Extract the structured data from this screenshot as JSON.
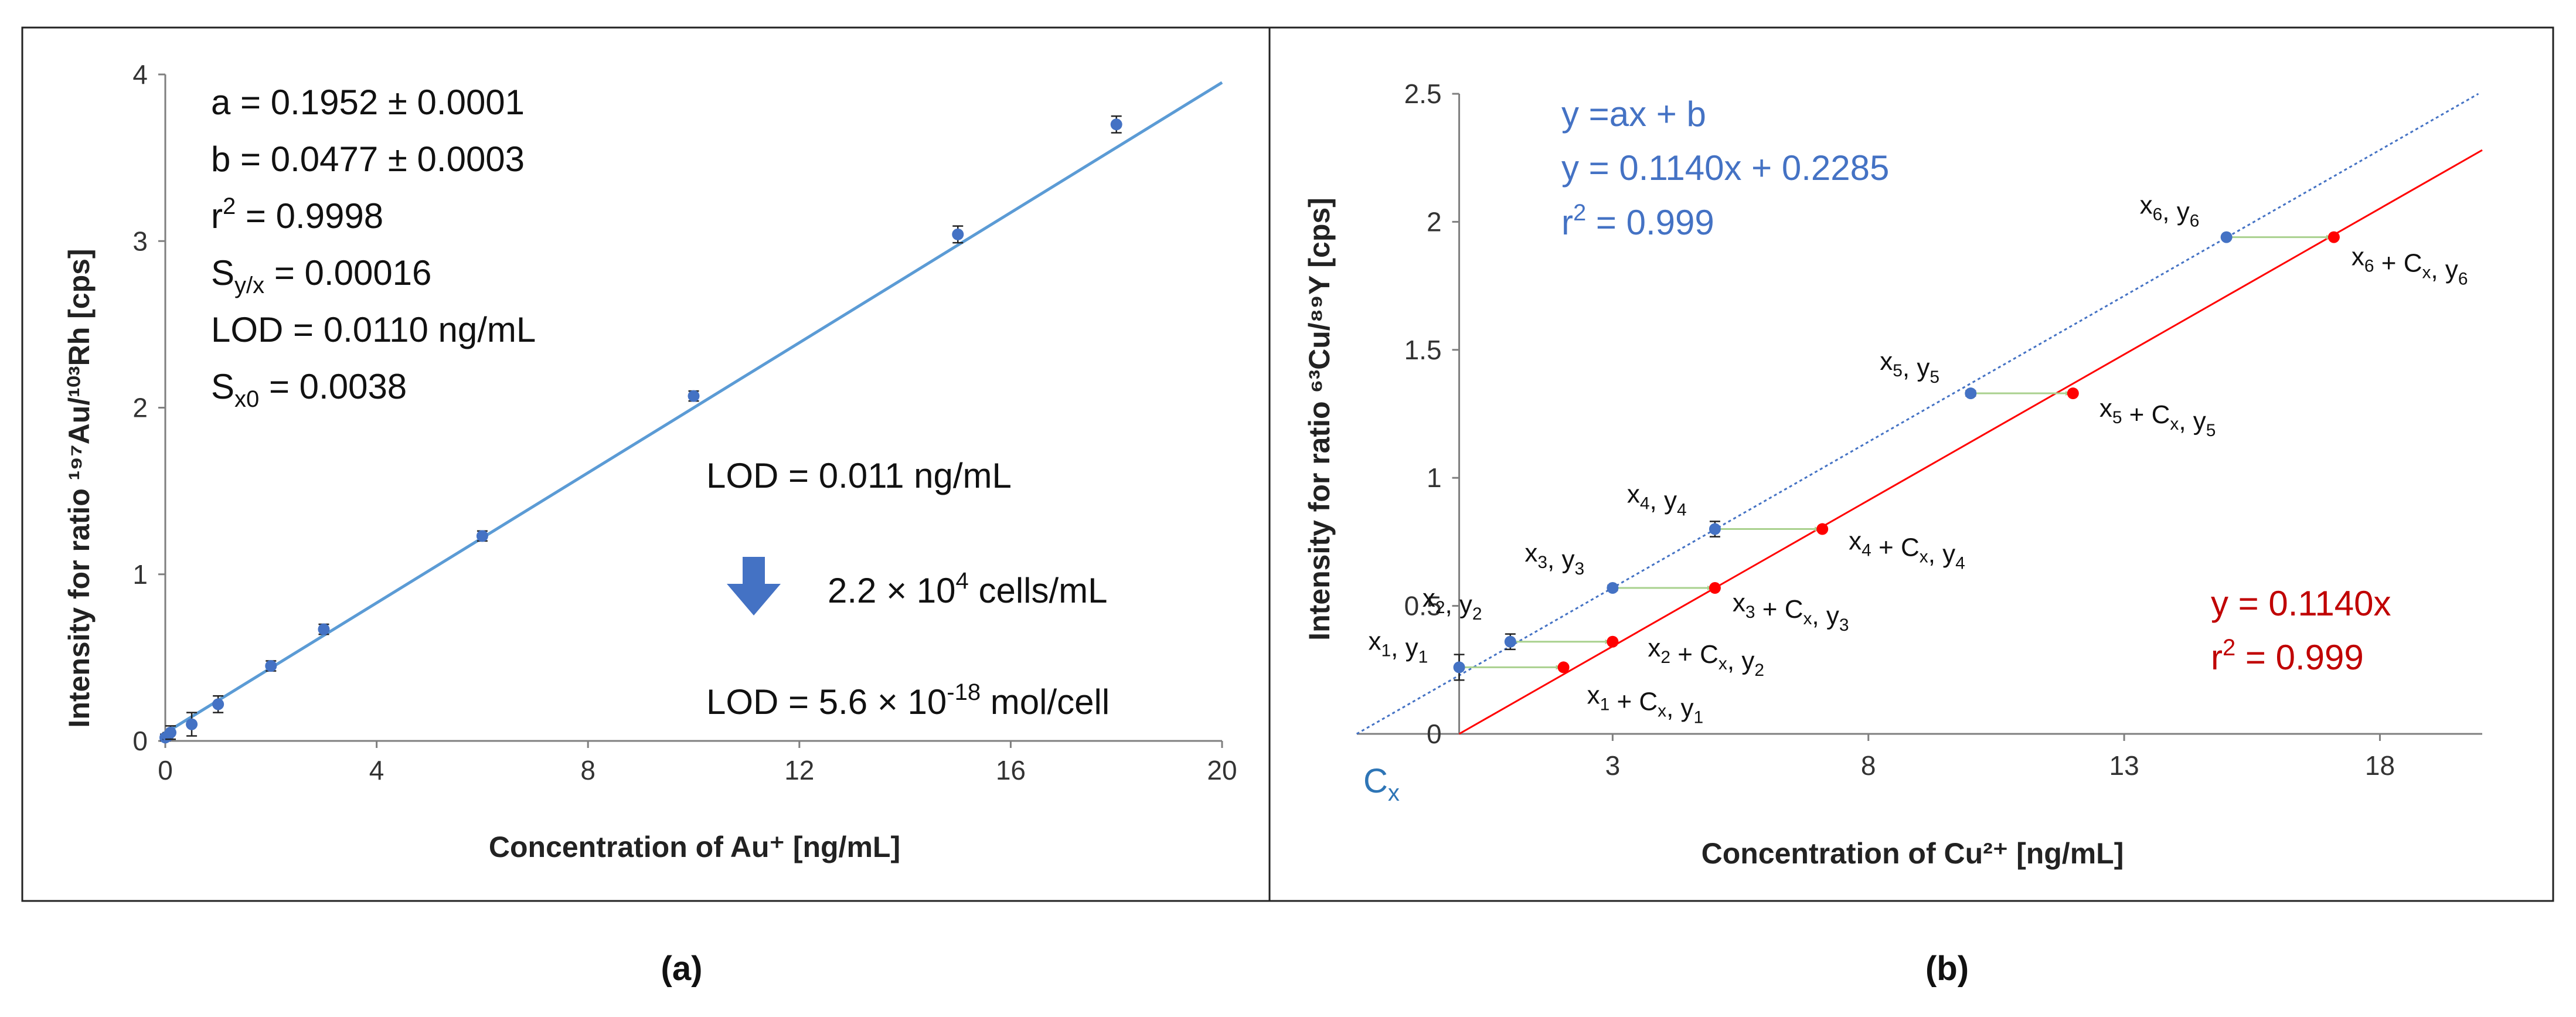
{
  "chart_data": [
    {
      "panel": "(a)",
      "type": "scatter",
      "xlabel": "Concentration of Au⁺ [ng/mL]",
      "ylabel": "Intensity for ratio ¹⁹⁷Au/¹⁰³Rh [cps]",
      "xlim": [
        0,
        20
      ],
      "ylim": [
        0,
        4
      ],
      "x_ticks": [
        0,
        4,
        8,
        12,
        16,
        20
      ],
      "y_ticks": [
        0,
        1,
        2,
        3,
        4
      ],
      "grid": false,
      "series": [
        {
          "x": [
            0,
            0.05,
            0.1,
            0.5,
            1,
            2,
            3,
            6,
            10,
            15,
            18
          ],
          "y": [
            0.02,
            0.03,
            0.05,
            0.1,
            0.22,
            0.45,
            0.67,
            1.23,
            2.07,
            3.04,
            3.7
          ],
          "err": [
            0.02,
            0.02,
            0.04,
            0.07,
            0.05,
            0.03,
            0.03,
            0.03,
            0.03,
            0.05,
            0.05
          ]
        }
      ],
      "fit_line": {
        "slope": 0.1952,
        "intercept": 0.0477,
        "x_range": [
          0,
          20
        ]
      },
      "color": "#4472C4",
      "line_color": "#5B9BD5",
      "stats": [
        {
          "text": "a = 0.1952 ± 0.0001"
        },
        {
          "text": "b = 0.0477 ± 0.0003"
        },
        {
          "pre": "r",
          "sup": "2",
          "post": " = 0.9998"
        },
        {
          "pre": "S",
          "sub": "y/x",
          "post": " = 0.00016"
        },
        {
          "text": "LOD = 0.0110 ng/mL"
        },
        {
          "pre": "S",
          "sub": "x0",
          "post": " = 0.0038"
        }
      ],
      "lod1": "LOD = 0.011 ng/mL",
      "cells": {
        "pre": "2.2 × 10",
        "sup": "4",
        "post": " cells/mL"
      },
      "lod2": {
        "pre": "LOD = 5.6 × 10",
        "sup": "-18",
        "post": " mol/cell"
      },
      "arrow_icon": "down-arrow-icon"
    },
    {
      "panel": "(b)",
      "type": "scatter",
      "xlabel": "Concentration of Cu²⁺ [ng/mL]",
      "ylabel": "Intensity for ratio ⁶³Cu/⁸⁹Y [cps]",
      "xlim": [
        -2,
        20
      ],
      "ylim": [
        0,
        2.5
      ],
      "x_ticks": [
        3,
        8,
        13,
        18
      ],
      "y_ticks": [
        0,
        0.5,
        1,
        1.5,
        2,
        2.5
      ],
      "y_tick_labels": [
        "0",
        "0.5",
        "1",
        "1.5",
        "2",
        "2.5"
      ],
      "grid": false,
      "x_origin_label": "Cx",
      "series": [
        {
          "name": "y = 0.1140x + 0.2285",
          "x": [
            0,
            1,
            3,
            5,
            10,
            15
          ],
          "y": [
            0.26,
            0.36,
            0.57,
            0.8,
            1.33,
            1.94
          ],
          "err": [
            0.05,
            0.03,
            0.01,
            0.03,
            0.01,
            0.005
          ],
          "color": "#4472C4"
        },
        {
          "name": "y = 0.1140x",
          "x": [
            2.04,
            3.0,
            5.0,
            7.1,
            12.0,
            17.1
          ],
          "y": [
            0.26,
            0.36,
            0.57,
            0.8,
            1.33,
            1.94
          ],
          "color": "#FF0000"
        }
      ],
      "point_labels": [
        {
          "text": "x1, y1"
        },
        {
          "text": "x2, y2"
        },
        {
          "text": "x3, y3"
        },
        {
          "text": "x4, y4"
        },
        {
          "text": "x5, y5"
        },
        {
          "text": "x6, y6"
        }
      ],
      "shift_labels": [
        {
          "text": "x1 + Cx, y1"
        },
        {
          "text": "x2 + Cx, y2"
        },
        {
          "text": "x3 + Cx, y3"
        },
        {
          "text": "x4 + Cx, y4"
        },
        {
          "text": "x5 + Cx, y5"
        },
        {
          "text": "x6 + Cx, y6"
        }
      ],
      "blue_eq": {
        "line1": "y =ax + b",
        "line2": "y = 0.1140x + 0.2285",
        "line3": "r2 = 0.999"
      },
      "red_eq": {
        "line1": "y = 0.1140x",
        "line2": "r2 = 0.999"
      },
      "blue_color": "#4472C4",
      "red_color": "#C00000",
      "arrow_color": "#A9D18E"
    }
  ],
  "captions": {
    "a": "(a)",
    "b": "(b)"
  }
}
